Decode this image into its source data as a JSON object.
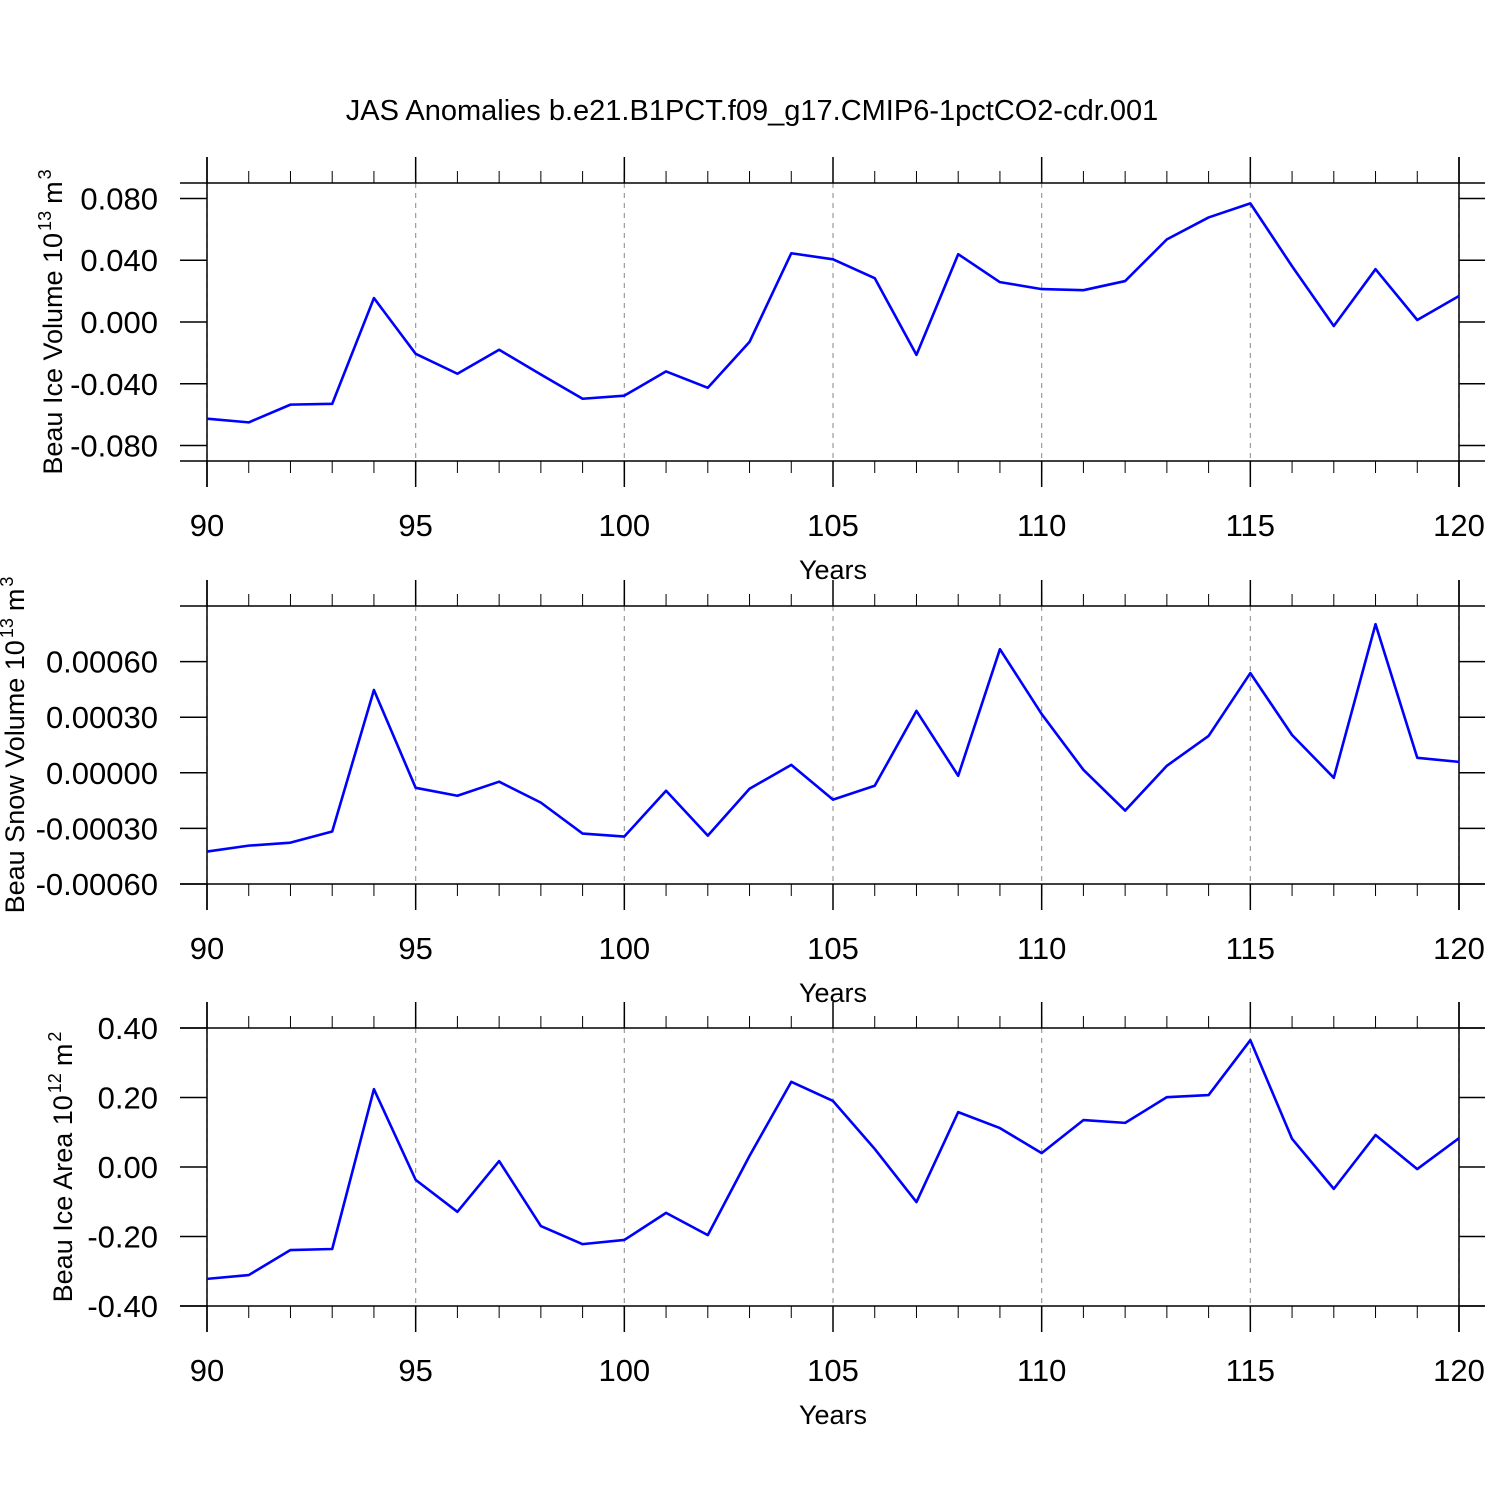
{
  "chart_data": [
    {
      "type": "line",
      "title": "JAS Anomalies b.e21.B1PCT.f09_g17.CMIP6-1pctCO2-cdr.001",
      "xlabel": "Years",
      "ylabel": [
        "Beau Ice Volume 10",
        "13",
        "m",
        "3"
      ],
      "x": [
        90,
        91,
        92,
        93,
        94,
        95,
        96,
        97,
        98,
        99,
        100,
        101,
        102,
        103,
        104,
        105,
        106,
        107,
        108,
        109,
        110,
        111,
        112,
        113,
        114,
        115,
        116,
        117,
        118,
        119,
        120
      ],
      "series": [
        {
          "color": "#0000ff",
          "values": [
            -0.0626,
            -0.065,
            -0.0535,
            -0.053,
            0.0155,
            -0.0206,
            -0.0335,
            -0.018,
            -0.034,
            -0.0497,
            -0.0477,
            -0.032,
            -0.0426,
            -0.0129,
            0.0445,
            0.0406,
            0.0284,
            -0.0213,
            0.0439,
            0.0258,
            0.0213,
            0.0206,
            0.0265,
            0.0535,
            0.0677,
            0.0768,
            0.0361,
            -0.0026,
            0.0342,
            0.0013,
            0.0168
          ]
        }
      ],
      "xlim": [
        90,
        120
      ],
      "xticks": [
        90,
        95,
        100,
        105,
        110,
        115,
        120
      ],
      "ylim": [
        -0.09,
        0.09
      ],
      "yticks": [
        {
          "value": -0.08,
          "label": "-0.080"
        },
        {
          "value": -0.04,
          "label": "-0.040"
        },
        {
          "value": 0,
          "label": "0.000"
        },
        {
          "value": 0.04,
          "label": "0.040"
        },
        {
          "value": 0.08,
          "label": "0.080"
        }
      ],
      "grid": "x"
    },
    {
      "type": "line",
      "xlabel": "Years",
      "ylabel": [
        "Beau Snow Volume 10",
        "13",
        "m",
        "3"
      ],
      "x": [
        90,
        91,
        92,
        93,
        94,
        95,
        96,
        97,
        98,
        99,
        100,
        101,
        102,
        103,
        104,
        105,
        106,
        107,
        108,
        109,
        110,
        111,
        112,
        113,
        114,
        115,
        116,
        117,
        118,
        119,
        120
      ],
      "series": [
        {
          "color": "#0000ff",
          "values": [
            -0.000425,
            -0.000393,
            -0.000377,
            -0.000317,
            0.000447,
            -8.1e-05,
            -0.000124,
            -4.8e-05,
            -0.000161,
            -0.000328,
            -0.000344,
            -9.7e-05,
            -0.000339,
            -8.6e-05,
            4.3e-05,
            -0.000145,
            -7e-05,
            0.000334,
            -1.6e-05,
            0.000667,
            0.000317,
            1.6e-05,
            -0.000204,
            3.8e-05,
            0.000199,
            0.000538,
            0.000204,
            -2.7e-05,
            0.000802,
            8.1e-05,
            5.9e-05
          ]
        }
      ],
      "xlim": [
        90,
        120
      ],
      "xticks": [
        90,
        95,
        100,
        105,
        110,
        115,
        120
      ],
      "ylim": [
        -0.0006,
        0.0009
      ],
      "yticks": [
        {
          "value": -0.0006,
          "label": "-0.00060"
        },
        {
          "value": -0.0003,
          "label": "-0.00030"
        },
        {
          "value": 0,
          "label": "0.00000"
        },
        {
          "value": 0.0003,
          "label": "0.00030"
        },
        {
          "value": 0.0006,
          "label": "0.00060"
        }
      ],
      "grid": "x"
    },
    {
      "type": "line",
      "xlabel": "Years",
      "ylabel": [
        "Beau Ice Area 10",
        "12",
        "m",
        "2"
      ],
      "x": [
        90,
        91,
        92,
        93,
        94,
        95,
        96,
        97,
        98,
        99,
        100,
        101,
        102,
        103,
        104,
        105,
        106,
        107,
        108,
        109,
        110,
        111,
        112,
        113,
        114,
        115,
        116,
        117,
        118,
        119,
        120
      ],
      "series": [
        {
          "color": "#0000ff",
          "values": [
            -0.322,
            -0.311,
            -0.239,
            -0.236,
            0.224,
            -0.037,
            -0.129,
            0.017,
            -0.17,
            -0.222,
            -0.21,
            -0.132,
            -0.196,
            0.032,
            0.245,
            0.19,
            0.052,
            -0.101,
            0.158,
            0.112,
            0.04,
            0.135,
            0.127,
            0.201,
            0.207,
            0.365,
            0.081,
            -0.063,
            0.092,
            -0.006,
            0.083
          ]
        }
      ],
      "xlim": [
        90,
        120
      ],
      "xticks": [
        90,
        95,
        100,
        105,
        110,
        115,
        120
      ],
      "ylim": [
        -0.4,
        0.4
      ],
      "yticks": [
        {
          "value": -0.4,
          "label": "-0.40"
        },
        {
          "value": -0.2,
          "label": "-0.20"
        },
        {
          "value": 0,
          "label": "0.00"
        },
        {
          "value": 0.2,
          "label": "0.20"
        },
        {
          "value": 0.4,
          "label": "0.40"
        }
      ],
      "grid": "x"
    }
  ]
}
